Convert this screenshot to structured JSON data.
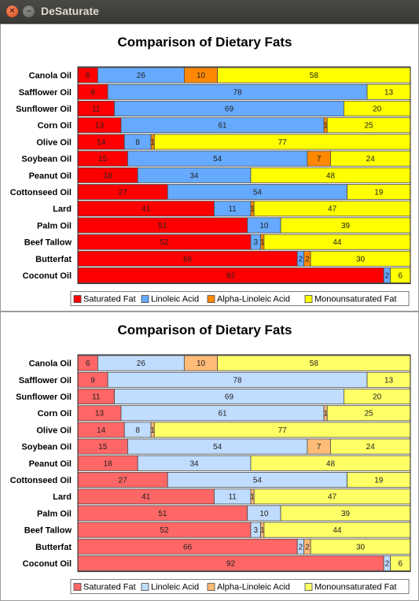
{
  "window": {
    "title": "DeSaturate",
    "close_glyph": "×",
    "minimize_glyph": "–"
  },
  "colors": {
    "original": [
      "#ff0000",
      "#66aaff",
      "#ff8800",
      "#ffff00"
    ],
    "desaturated": [
      "#ff6666",
      "#c0dcff",
      "#ffbb77",
      "#ffff66"
    ]
  },
  "chart_data": [
    {
      "type": "bar",
      "orientation": "horizontal",
      "stacked": true,
      "title": "Comparison of Dietary Fats",
      "categories": [
        "Canola Oil",
        "Safflower Oil",
        "Sunflower Oil",
        "Corn Oil",
        "Olive Oil",
        "Soybean Oil",
        "Peanut Oil",
        "Cottonseed Oil",
        "Lard",
        "Palm Oil",
        "Beef Tallow",
        "Butterfat",
        "Coconut Oil"
      ],
      "series": [
        {
          "name": "Saturated Fat",
          "values": [
            6,
            9,
            11,
            13,
            14,
            15,
            18,
            27,
            41,
            51,
            52,
            66,
            92
          ]
        },
        {
          "name": "Linoleic Acid",
          "values": [
            26,
            78,
            69,
            61,
            8,
            54,
            34,
            54,
            11,
            10,
            3,
            2,
            2
          ]
        },
        {
          "name": "Alpha-Linoleic Acid",
          "values": [
            10,
            0,
            0,
            1,
            1,
            7,
            0,
            0,
            1,
            0,
            1,
            2,
            0
          ]
        },
        {
          "name": "Monounsaturated Fat",
          "values": [
            58,
            13,
            20,
            25,
            77,
            24,
            48,
            19,
            47,
            39,
            44,
            30,
            6
          ]
        }
      ],
      "xlim": [
        0,
        100
      ],
      "legend": "bottom",
      "palette": "original"
    },
    {
      "type": "bar",
      "orientation": "horizontal",
      "stacked": true,
      "title": "Comparison of Dietary Fats",
      "categories": [
        "Canola Oil",
        "Safflower Oil",
        "Sunflower Oil",
        "Corn Oil",
        "Olive Oil",
        "Soybean Oil",
        "Peanut Oil",
        "Cottonseed Oil",
        "Lard",
        "Palm Oil",
        "Beef Tallow",
        "Butterfat",
        "Coconut Oil"
      ],
      "series": [
        {
          "name": "Saturated Fat",
          "values": [
            6,
            9,
            11,
            13,
            14,
            15,
            18,
            27,
            41,
            51,
            52,
            66,
            92
          ]
        },
        {
          "name": "Linoleic Acid",
          "values": [
            26,
            78,
            69,
            61,
            8,
            54,
            34,
            54,
            11,
            10,
            3,
            2,
            2
          ]
        },
        {
          "name": "Alpha-Linoleic Acid",
          "values": [
            10,
            0,
            0,
            1,
            1,
            7,
            0,
            0,
            1,
            0,
            1,
            2,
            0
          ]
        },
        {
          "name": "Monounsaturated Fat",
          "values": [
            58,
            13,
            20,
            25,
            77,
            24,
            48,
            19,
            47,
            39,
            44,
            30,
            6
          ]
        }
      ],
      "xlim": [
        0,
        100
      ],
      "legend": "bottom",
      "palette": "desaturated"
    }
  ]
}
